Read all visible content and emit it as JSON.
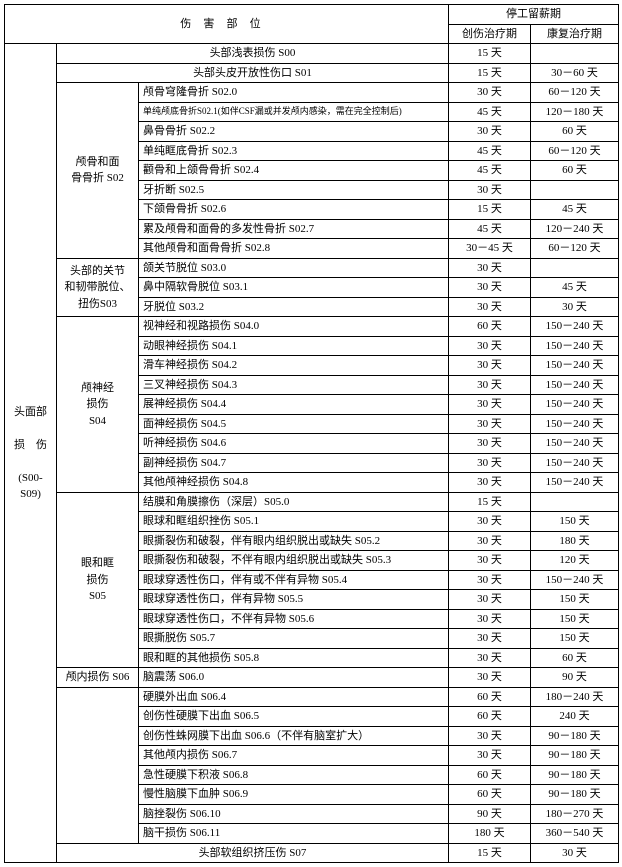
{
  "header": {
    "site": "伤害部位",
    "leave": "停工留薪期",
    "injury": "创伤治疗期",
    "rehab": "康复治疗期"
  },
  "parent": {
    "label": "头面部\n\n损　伤\n\n(S00-\nS09)"
  },
  "rows": [
    {
      "sub": "",
      "desc": "头部浅表损伤 S00",
      "inj": "15 天",
      "reh": "",
      "descSpan": 2,
      "descCenter": true
    },
    {
      "sub": "",
      "desc": "头部头皮开放性伤口 S01",
      "inj": "15 天",
      "reh": "30－60 天",
      "descSpan": 2,
      "descCenter": true
    },
    {
      "sub": "颅骨和面\n骨骨折 S02",
      "subRows": 9,
      "desc": "颅骨穹隆骨折 S02.0",
      "inj": "30 天",
      "reh": "60－120 天"
    },
    {
      "desc": "单纯颅底骨折S02.1(如伴CSF漏或并发颅内感染，需在完全控制后)",
      "inj": "45 天",
      "reh": "120－180 天",
      "small": true
    },
    {
      "desc": "鼻骨骨折 S02.2",
      "inj": "30 天",
      "reh": "60 天"
    },
    {
      "desc": "单纯眶底骨折 S02.3",
      "inj": "45 天",
      "reh": "60－120 天"
    },
    {
      "desc": "颧骨和上颌骨骨折 S02.4",
      "inj": "45 天",
      "reh": "60 天"
    },
    {
      "desc": "牙折断 S02.5",
      "inj": "30 天",
      "reh": ""
    },
    {
      "desc": "下颌骨骨折 S02.6",
      "inj": "15 天",
      "reh": "45 天"
    },
    {
      "desc": "累及颅骨和面骨的多发性骨折 S02.7",
      "inj": "45 天",
      "reh": "120－240 天"
    },
    {
      "desc": "其他颅骨和面骨骨折 S02.8",
      "inj": "30－45 天",
      "reh": "60－120 天"
    },
    {
      "sub": "头部的关节\n和韧带脱位、\n扭伤S03",
      "subRows": 3,
      "desc": "颌关节脱位 S03.0",
      "inj": "30 天",
      "reh": ""
    },
    {
      "desc": "鼻中隔软骨脱位 S03.1",
      "inj": "30 天",
      "reh": "45 天"
    },
    {
      "desc": "牙脱位 S03.2",
      "inj": "30 天",
      "reh": "30 天"
    },
    {
      "sub": "颅神经\n损伤\nS04",
      "subRows": 9,
      "desc": "视神经和视路损伤 S04.0",
      "inj": "60 天",
      "reh": "150－240 天"
    },
    {
      "desc": "动眼神经损伤 S04.1",
      "inj": "30 天",
      "reh": "150－240 天"
    },
    {
      "desc": "滑车神经损伤 S04.2",
      "inj": "30 天",
      "reh": "150－240 天"
    },
    {
      "desc": "三叉神经损伤 S04.3",
      "inj": "30 天",
      "reh": "150－240 天"
    },
    {
      "desc": "展神经损伤 S04.4",
      "inj": "30 天",
      "reh": "150－240 天"
    },
    {
      "desc": "面神经损伤 S04.5",
      "inj": "30 天",
      "reh": "150－240 天"
    },
    {
      "desc": "听神经损伤 S04.6",
      "inj": "30 天",
      "reh": "150－240 天"
    },
    {
      "desc": "副神经损伤 S04.7",
      "inj": "30 天",
      "reh": "150－240 天"
    },
    {
      "desc": "其他颅神经损伤 S04.8",
      "inj": "30 天",
      "reh": "150－240 天"
    },
    {
      "sub": "眼和眶\n损伤\nS05",
      "subRows": 9,
      "desc": "结膜和角膜擦伤（深层）S05.0",
      "inj": "15 天",
      "reh": ""
    },
    {
      "desc": "眼球和眶组织挫伤 S05.1",
      "inj": "30 天",
      "reh": "150 天"
    },
    {
      "desc": "眼撕裂伤和破裂，伴有眼内组织脱出或缺失 S05.2",
      "inj": "30 天",
      "reh": "180 天"
    },
    {
      "desc": "眼撕裂伤和破裂，不伴有眼内组织脱出或缺失 S05.3",
      "inj": "30 天",
      "reh": "120 天"
    },
    {
      "desc": "眼球穿透性伤口，伴有或不伴有异物 S05.4",
      "inj": "30 天",
      "reh": "150－240 天"
    },
    {
      "desc": "眼球穿透性伤口，伴有异物 S05.5",
      "inj": "30 天",
      "reh": "150 天"
    },
    {
      "desc": "眼球穿透性伤口，不伴有异物 S05.6",
      "inj": "30 天",
      "reh": "150 天"
    },
    {
      "desc": "眼撕脱伤 S05.7",
      "inj": "30 天",
      "reh": "150 天"
    },
    {
      "desc": "眼和眶的其他损伤 S05.8",
      "inj": "30 天",
      "reh": "60 天"
    },
    {
      "sub": "颅内损伤 S06",
      "subRows": 1,
      "desc": "脑震荡 S06.0",
      "inj": "30 天",
      "reh": "90 天"
    },
    {
      "sub": "",
      "subRows": 8,
      "desc": "硬膜外出血 S06.4",
      "inj": "60 天",
      "reh": "180－240 天"
    },
    {
      "desc": "创伤性硬膜下出血 S06.5",
      "inj": "60 天",
      "reh": "240 天"
    },
    {
      "desc": "创伤性蛛网膜下出血 S06.6（不伴有脑室扩大）",
      "inj": "30 天",
      "reh": "90－180 天"
    },
    {
      "desc": "其他颅内损伤 S06.7",
      "inj": "30 天",
      "reh": "90－180 天"
    },
    {
      "desc": "急性硬膜下积液 S06.8",
      "inj": "60 天",
      "reh": "90－180 天"
    },
    {
      "desc": "慢性脑膜下血肿 S06.9",
      "inj": "60 天",
      "reh": "90－180 天"
    },
    {
      "desc": "脑挫裂伤 S06.10",
      "inj": "90 天",
      "reh": "180－270 天"
    },
    {
      "desc": "脑干损伤 S06.11",
      "inj": "180 天",
      "reh": "360－540 天"
    },
    {
      "sub": "",
      "desc": "头部软组织挤压伤 S07",
      "inj": "15 天",
      "reh": "30 天",
      "descSpan": 2,
      "descCenter": true
    }
  ]
}
